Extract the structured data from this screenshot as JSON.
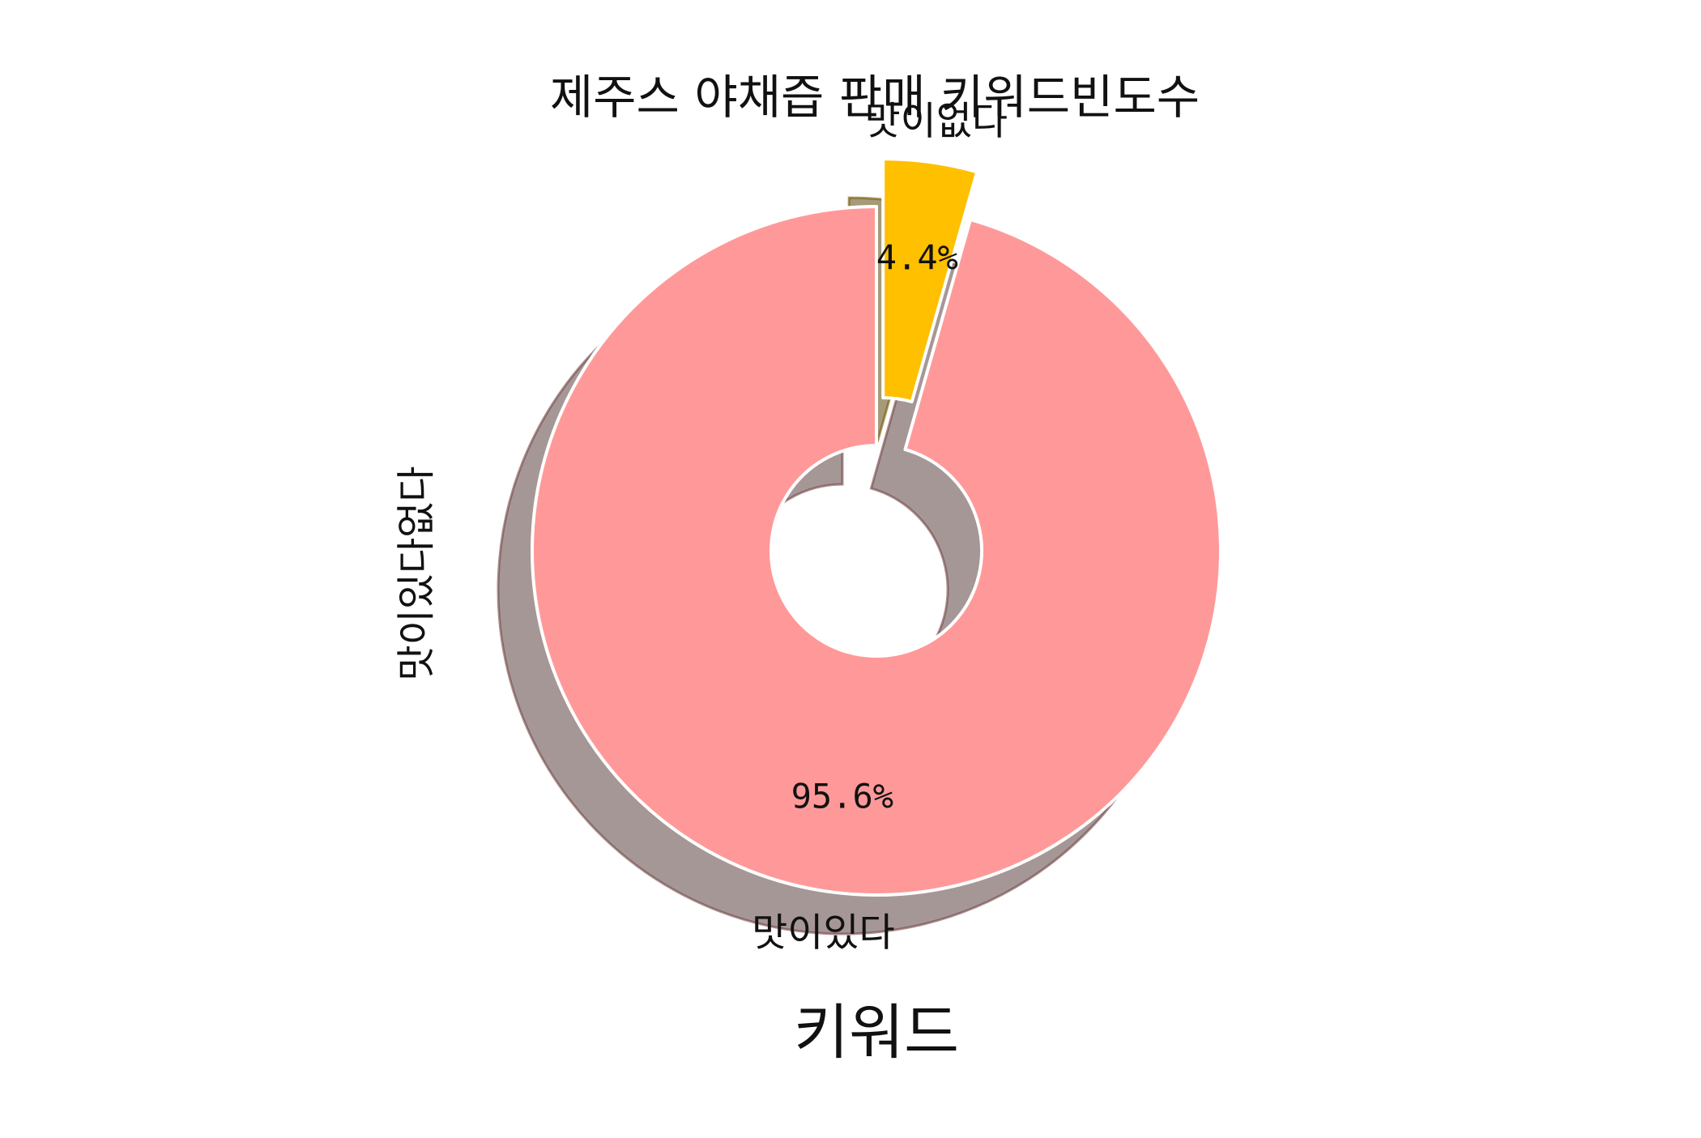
{
  "chart_data": {
    "type": "pie",
    "title": "제주스 야채즙 판매 키워드빈도수",
    "xlabel": "키워드",
    "ylabel": "맛이있다없다",
    "categories": [
      "맛이있다",
      "맛이없다"
    ],
    "values": [
      95.6,
      4.4
    ],
    "value_labels": [
      "95.6%",
      "4.4%"
    ],
    "colors": [
      "#ff9999",
      "#ffc000"
    ],
    "shadow": true,
    "donut": true,
    "exploded": [
      "맛이없다"
    ],
    "start_angle_deg": 90,
    "direction": "counterclockwise"
  }
}
